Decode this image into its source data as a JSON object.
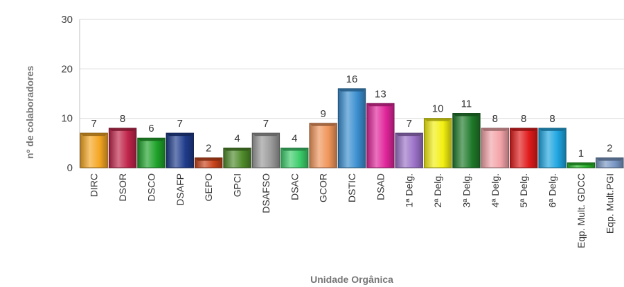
{
  "chart_data": {
    "type": "bar",
    "title": "",
    "xlabel": "Unidade Orgânica",
    "ylabel": "nº de colaboradores",
    "ylim": [
      0,
      30
    ],
    "yticks": [
      "0",
      "10",
      "20",
      "30"
    ],
    "grid": true,
    "legend": "none",
    "categories": [
      "DIRC",
      "DSOR",
      "DSCO",
      "DSAFP",
      "GEPO",
      "GPCI",
      "DSAFSO",
      "DSAC",
      "GCOR",
      "DSTIC",
      "DSAD",
      "1ª Delg.",
      "2ª Delg.",
      "3ª Delg.",
      "4ª Delg.",
      "5ª Delg.",
      "6ª Delg.",
      "Eqp. Mult. GDCC",
      "Eqp. Mult.PGI"
    ],
    "values": [
      7,
      8,
      6,
      7,
      2,
      4,
      7,
      4,
      9,
      16,
      13,
      7,
      10,
      11,
      8,
      8,
      8,
      1,
      2
    ],
    "colors": [
      "#f5a623",
      "#c0244a",
      "#1fa32a",
      "#1f3c8c",
      "#c8431a",
      "#4e8a2a",
      "#9a9a9a",
      "#3ccc6a",
      "#f0955a",
      "#3a8fd0",
      "#e0259a",
      "#9b72c8",
      "#f2ef10",
      "#1f7a2a",
      "#f3a3a8",
      "#e01a1a",
      "#1ea5e0",
      "#28b52a",
      "#7896c4"
    ]
  }
}
